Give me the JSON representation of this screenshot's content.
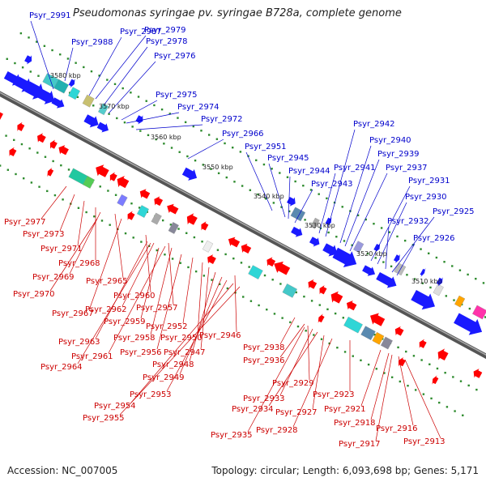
{
  "title": "Pseudomonas syringae pv. syringae B728a, complete genome",
  "footer": {
    "accession": "Accession: NC_007005",
    "stats": "Topology: circular; Length: 6,093,698 bp; Genes: 5,171"
  },
  "colors": {
    "forward": "#1a1aff",
    "reverse": "#ff0000",
    "backbone": "#777777",
    "tick": "#2e8b2e",
    "label_forward": "#0000cc",
    "label_reverse": "#cc0000"
  },
  "scale_labels": [
    "3580 kbp",
    "3570 kbp",
    "3560 kbp",
    "3550 kbp",
    "3540 kbp",
    "3530 kbp",
    "3520 kbp",
    "3510 kbp"
  ],
  "forward_labels": [
    "Psyr_2991",
    "Psyr_2988",
    "Psyr_2987",
    "Psyr_2979",
    "Psyr_2978",
    "Psyr_2976",
    "Psyr_2975",
    "Psyr_2974",
    "Psyr_2972",
    "Psyr_2966",
    "Psyr_2951",
    "Psyr_2945",
    "Psyr_2944",
    "Psyr_2943",
    "Psyr_2942",
    "Psyr_2941",
    "Psyr_2940",
    "Psyr_2939",
    "Psyr_2937",
    "Psyr_2931",
    "Psyr_2930",
    "Psyr_2932",
    "Psyr_2925",
    "Psyr_2926"
  ],
  "reverse_labels": [
    "Psyr_2977",
    "Psyr_2973",
    "Psyr_2971",
    "Psyr_2968",
    "Psyr_2969",
    "Psyr_2965",
    "Psyr_2970",
    "Psyr_2960",
    "Psyr_2967",
    "Psyr_2962",
    "Psyr_2957",
    "Psyr_2959",
    "Psyr_2952",
    "Psyr_2963",
    "Psyr_2958",
    "Psyr_2950",
    "Psyr_2946",
    "Psyr_2961",
    "Psyr_2956",
    "Psyr_2947",
    "Psyr_2938",
    "Psyr_2964",
    "Psyr_2948",
    "Psyr_2936",
    "Psyr_2949",
    "Psyr_2929",
    "Psyr_2953",
    "Psyr_2933",
    "Psyr_2923",
    "Psyr_2954",
    "Psyr_2934",
    "Psyr_2927",
    "Psyr_2921",
    "Psyr_2955",
    "Psyr_2918",
    "Psyr_2916",
    "Psyr_2928",
    "Psyr_2935",
    "Psyr_2917",
    "Psyr_2913"
  ]
}
